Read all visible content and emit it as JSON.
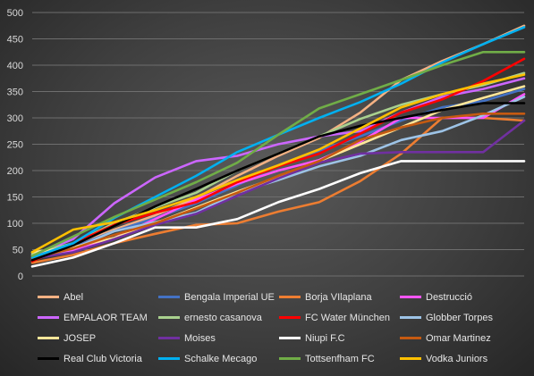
{
  "chart_data": {
    "type": "line",
    "title": "",
    "xlabel": "",
    "ylabel": "",
    "ylim": [
      0,
      500
    ],
    "yticks": [
      0,
      50,
      100,
      150,
      200,
      250,
      300,
      350,
      400,
      450,
      500
    ],
    "x": [
      1,
      2,
      3,
      4,
      5,
      6,
      7,
      8,
      9,
      10,
      11,
      12,
      13
    ],
    "grid": true,
    "legend": "bottom",
    "series": [
      {
        "name": "Abel",
        "color": "#f4b183",
        "values": [
          40,
          58,
          88,
          115,
          148,
          190,
          228,
          262,
          310,
          372,
          408,
          440,
          475
        ]
      },
      {
        "name": "Bengala Imperial UE",
        "color": "#4472c4",
        "values": [
          30,
          55,
          85,
          110,
          138,
          172,
          210,
          238,
          265,
          295,
          320,
          332,
          355
        ]
      },
      {
        "name": "Borja VIlaplana",
        "color": "#ed7d31",
        "values": [
          25,
          40,
          62,
          80,
          97,
          100,
          122,
          140,
          180,
          232,
          300,
          300,
          295
        ]
      },
      {
        "name": "Destrucció",
        "color": "#ff55ff",
        "values": [
          35,
          48,
          72,
          108,
          145,
          175,
          200,
          220,
          255,
          300,
          300,
          300,
          345
        ]
      },
      {
        "name": "EMPALAOR TEAM",
        "color": "#cc66ff",
        "values": [
          38,
          70,
          138,
          187,
          218,
          228,
          250,
          265,
          275,
          310,
          340,
          355,
          375
        ]
      },
      {
        "name": "ernesto casanova",
        "color": "#a9d18e",
        "values": [
          42,
          62,
          100,
          130,
          158,
          200,
          232,
          265,
          298,
          325,
          345,
          362,
          385
        ]
      },
      {
        "name": "FC Water München",
        "color": "#ff0000",
        "values": [
          28,
          62,
          97,
          120,
          140,
          178,
          208,
          232,
          270,
          310,
          335,
          370,
          412
        ]
      },
      {
        "name": "Globber Torpes",
        "color": "#9dc3e6",
        "values": [
          32,
          52,
          85,
          102,
          120,
          158,
          182,
          208,
          228,
          258,
          275,
          305,
          340
        ]
      },
      {
        "name": "JOSEP",
        "color": "#ffe699",
        "values": [
          45,
          55,
          72,
          100,
          130,
          160,
          188,
          218,
          250,
          282,
          315,
          338,
          360
        ]
      },
      {
        "name": "Moises",
        "color": "#7030a0",
        "values": [
          33,
          45,
          70,
          97,
          118,
          152,
          185,
          215,
          232,
          235,
          235,
          235,
          295
        ]
      },
      {
        "name": "Niupi F.C",
        "color": "#ffffff",
        "values": [
          18,
          35,
          62,
          92,
          92,
          108,
          140,
          165,
          195,
          218,
          218,
          218,
          218
        ]
      },
      {
        "name": "Omar Martinez",
        "color": "#c55a11",
        "values": [
          34,
          52,
          78,
          100,
          128,
          158,
          190,
          218,
          258,
          282,
          300,
          308,
          308
        ]
      },
      {
        "name": "Real Club Victoria",
        "color": "#000000",
        "values": [
          30,
          58,
          95,
          132,
          165,
          200,
          232,
          265,
          285,
          300,
          315,
          328,
          328
        ]
      },
      {
        "name": "Schalke Mecago",
        "color": "#00b0f0",
        "values": [
          35,
          62,
          110,
          150,
          190,
          235,
          268,
          300,
          330,
          365,
          405,
          440,
          472
        ]
      },
      {
        "name": "Tottsenfham FC",
        "color": "#70ad47",
        "values": [
          38,
          75,
          112,
          145,
          178,
          215,
          268,
          318,
          345,
          372,
          400,
          425,
          425
        ]
      },
      {
        "name": "Vodka Juniors",
        "color": "#ffc000",
        "values": [
          45,
          88,
          102,
          125,
          150,
          182,
          210,
          240,
          280,
          320,
          345,
          365,
          382
        ]
      }
    ]
  }
}
